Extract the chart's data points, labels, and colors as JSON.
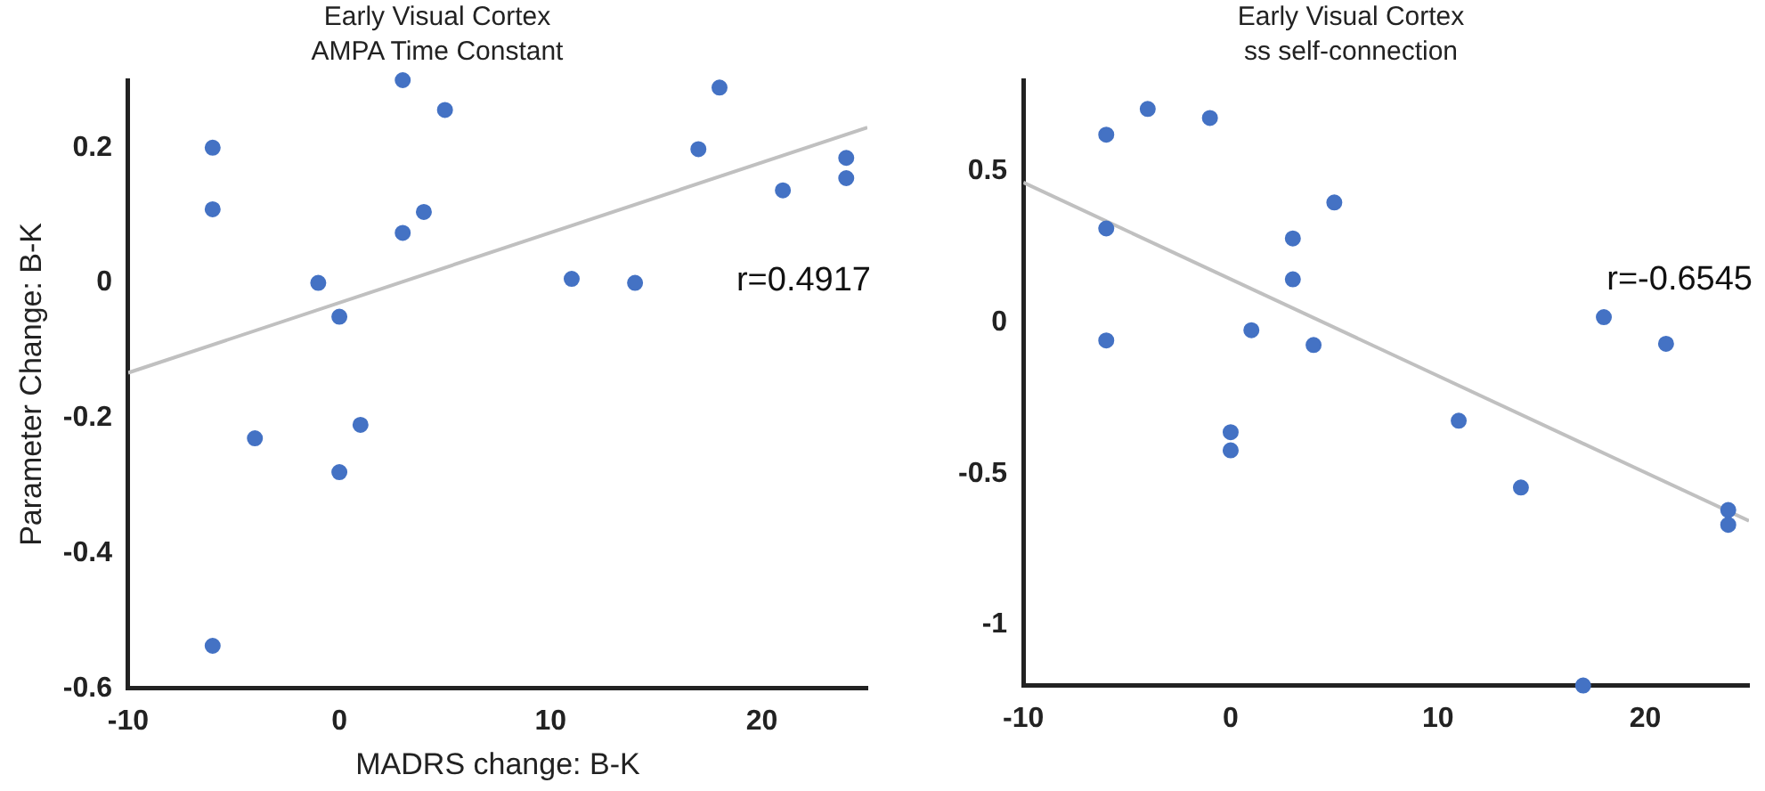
{
  "chart_data": [
    {
      "type": "scatter",
      "title": [
        "Early Visual Cortex",
        "AMPA Time Constant"
      ],
      "xlabel": "MADRS change: B-K",
      "ylabel": "Parameter Change: B-K",
      "xlim": [
        -10,
        25
      ],
      "xticks": [
        -10,
        0,
        10,
        20
      ],
      "ylim": [
        -0.6,
        0.3
      ],
      "yticks": [
        -0.6,
        -0.4,
        -0.2,
        0,
        0.2
      ],
      "grid": false,
      "legend": false,
      "annotations": [
        "r=0.4917"
      ],
      "series": [
        {
          "marker": "circle",
          "color": "#4472c4",
          "x": [
            -6,
            -6,
            -6,
            -4,
            -1,
            0,
            0,
            1,
            3,
            3,
            4,
            5,
            11,
            14,
            17,
            18,
            21,
            24,
            24
          ],
          "values": [
            0.2,
            0.109,
            -0.537,
            -0.23,
            0,
            -0.05,
            -0.28,
            -0.21,
            0.3,
            0.074,
            0.105,
            0.256,
            0.006,
            0,
            0.198,
            0.289,
            0.137,
            0.185,
            0.155
          ]
        },
        {
          "type": "line",
          "color": "#c0c0c0",
          "x": [
            -10,
            25
          ],
          "values": [
            -0.133,
            0.23
          ]
        }
      ]
    },
    {
      "type": "scatter",
      "title": [
        "Early Visual Cortex",
        "ss self-connection"
      ],
      "xlim": [
        -10,
        25
      ],
      "xticks": [
        -10,
        0,
        10,
        20
      ],
      "ylim": [
        -1.2,
        0.8
      ],
      "yticks": [
        -1,
        -0.5,
        0,
        0.5
      ],
      "grid": false,
      "legend": false,
      "annotations": [
        "r=-0.6545"
      ],
      "series": [
        {
          "marker": "circle",
          "color": "#4472c4",
          "x": [
            -6,
            -4,
            -1,
            -6,
            -6,
            3,
            3,
            5,
            1,
            4,
            0,
            0,
            11,
            14,
            17,
            18,
            21,
            24,
            24
          ],
          "values": [
            0.62,
            0.705,
            0.675,
            0.31,
            -0.06,
            0.277,
            0.142,
            0.396,
            -0.026,
            -0.075,
            -0.363,
            -0.423,
            -0.325,
            -0.546,
            -1.2,
            0.017,
            -0.071,
            -0.62,
            -0.669
          ]
        },
        {
          "type": "line",
          "color": "#c0c0c0",
          "x": [
            -10,
            25
          ],
          "values": [
            0.462,
            -0.656
          ]
        }
      ]
    }
  ]
}
